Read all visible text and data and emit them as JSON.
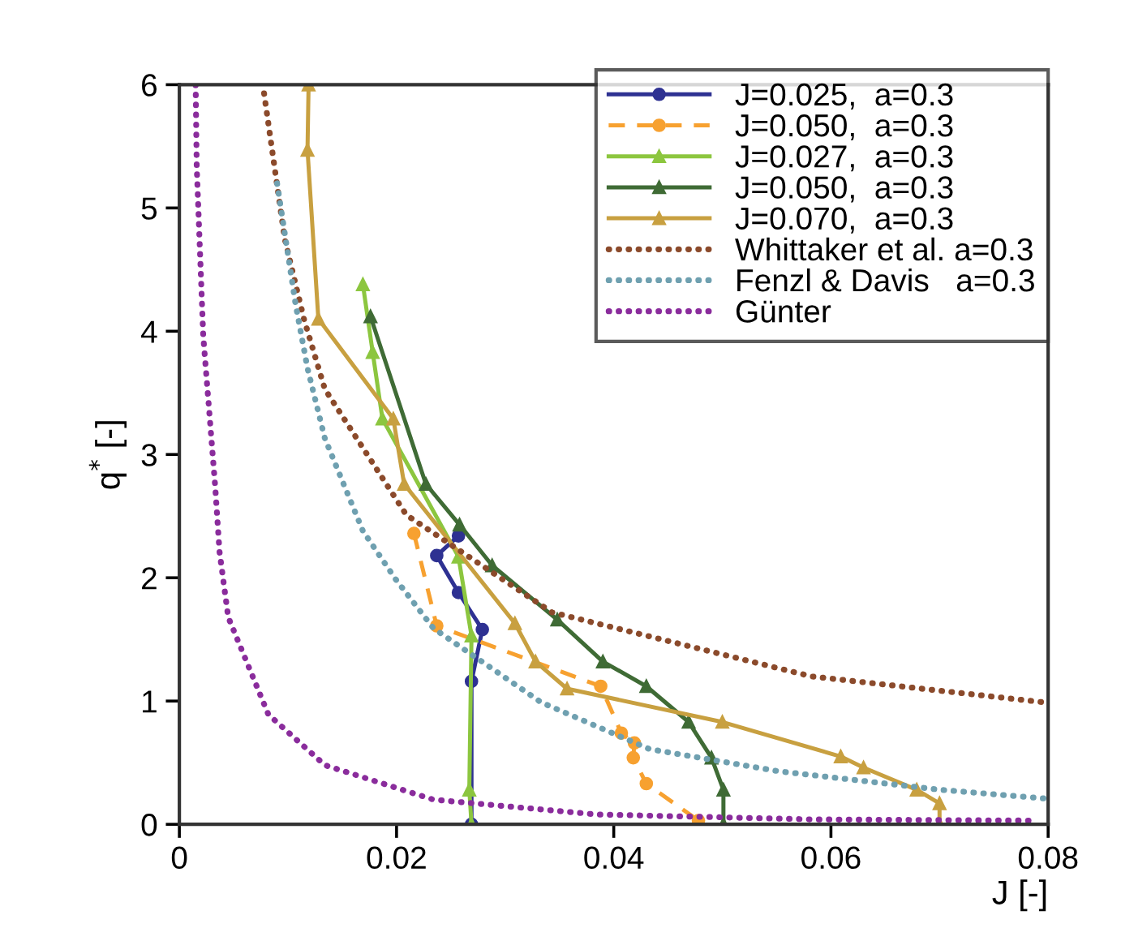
{
  "chart_data": {
    "type": "line",
    "xlabel": "J [-]",
    "ylabel": "q$^{*}$ [-]",
    "xlim": [
      0,
      0.08
    ],
    "ylim": [
      0,
      6
    ],
    "xticks": [
      0,
      0.02,
      0.04,
      0.06,
      0.08
    ],
    "yticks": [
      0,
      1,
      2,
      3,
      4,
      5,
      6
    ],
    "grid": false,
    "legend": "top right",
    "series": [
      {
        "name": "J=0.025,  a=0.3",
        "color": "#2e3192",
        "marker": "circle",
        "line_style": "solid",
        "x": [
          0.0257,
          0.0237,
          0.0257,
          0.0279,
          0.0269,
          0.0269
        ],
        "values": [
          2.34,
          2.18,
          1.88,
          1.58,
          1.16,
          0
        ]
      },
      {
        "name": "J=0.050,  a=0.3",
        "color": "#f7a130",
        "marker": "circle",
        "line_style": "dashed",
        "x": [
          0.0216,
          0.0237,
          0.0388,
          0.0407,
          0.0419,
          0.0418,
          0.043,
          0.0478
        ],
        "values": [
          2.36,
          1.61,
          1.12,
          0.74,
          0.66,
          0.54,
          0.33,
          0.03
        ]
      },
      {
        "name": "J=0.027,  a=0.3",
        "color": "#8cc63f",
        "marker": "triangle",
        "line_style": "solid",
        "x": [
          0.0169,
          0.0178,
          0.0187,
          0.0257,
          0.0269,
          0.0267,
          0.0269
        ],
        "values": [
          4.38,
          3.83,
          3.29,
          2.17,
          1.53,
          0.28,
          0
        ]
      },
      {
        "name": "J=0.050,  a=0.3",
        "color": "#3f6b35",
        "marker": "triangle",
        "line_style": "solid",
        "x": [
          0.0176,
          0.0227,
          0.0258,
          0.0288,
          0.0348,
          0.039,
          0.043,
          0.0469,
          0.049,
          0.0501,
          0.0501
        ],
        "values": [
          4.12,
          2.76,
          2.43,
          2.1,
          1.66,
          1.32,
          1.12,
          0.83,
          0.54,
          0.28,
          0
        ]
      },
      {
        "name": "J=0.070,  a=0.3",
        "color": "#c8a040",
        "marker": "triangle",
        "line_style": "solid",
        "x": [
          0.0119,
          0.0118,
          0.0128,
          0.0197,
          0.0207,
          0.0309,
          0.0328,
          0.0357,
          0.05,
          0.0609,
          0.063,
          0.0679,
          0.07,
          0.07
        ],
        "values": [
          6.0,
          5.47,
          4.1,
          3.29,
          2.76,
          1.63,
          1.32,
          1.1,
          0.83,
          0.55,
          0.46,
          0.28,
          0.17,
          0
        ]
      },
      {
        "name": "Whittaker et al. a=0.3",
        "color": "#8b4a2b",
        "marker": "none",
        "line_style": "dotted",
        "x": [
          0.0078,
          0.0097,
          0.0115,
          0.0134,
          0.0209,
          0.0343,
          0.0582,
          0.0796
        ],
        "values": [
          5.93,
          4.75,
          4.09,
          3.53,
          2.51,
          1.72,
          1.2,
          0.99
        ]
      },
      {
        "name": "Fenzl & Davis   a=0.3",
        "color": "#6fa0b0",
        "marker": "none",
        "line_style": "dotted",
        "x": [
          0.009,
          0.0107,
          0.0118,
          0.0134,
          0.0169,
          0.0199,
          0.0234,
          0.0333,
          0.0433,
          0.0552,
          0.0701,
          0.0796
        ],
        "values": [
          5.2,
          4.22,
          3.7,
          3.13,
          2.38,
          1.99,
          1.59,
          0.99,
          0.61,
          0.43,
          0.28,
          0.21
        ]
      },
      {
        "name": "Günter",
        "color": "#8a2c9c",
        "marker": "none",
        "line_style": "dotted",
        "x": [
          0.0015,
          0.0016,
          0.0022,
          0.0033,
          0.0037,
          0.0045,
          0.0082,
          0.0134,
          0.0234,
          0.0384,
          0.0582,
          0.079
        ],
        "values": [
          6.0,
          5.33,
          3.96,
          2.74,
          2.21,
          1.68,
          0.89,
          0.48,
          0.2,
          0.08,
          0.04,
          0.03
        ]
      }
    ]
  }
}
